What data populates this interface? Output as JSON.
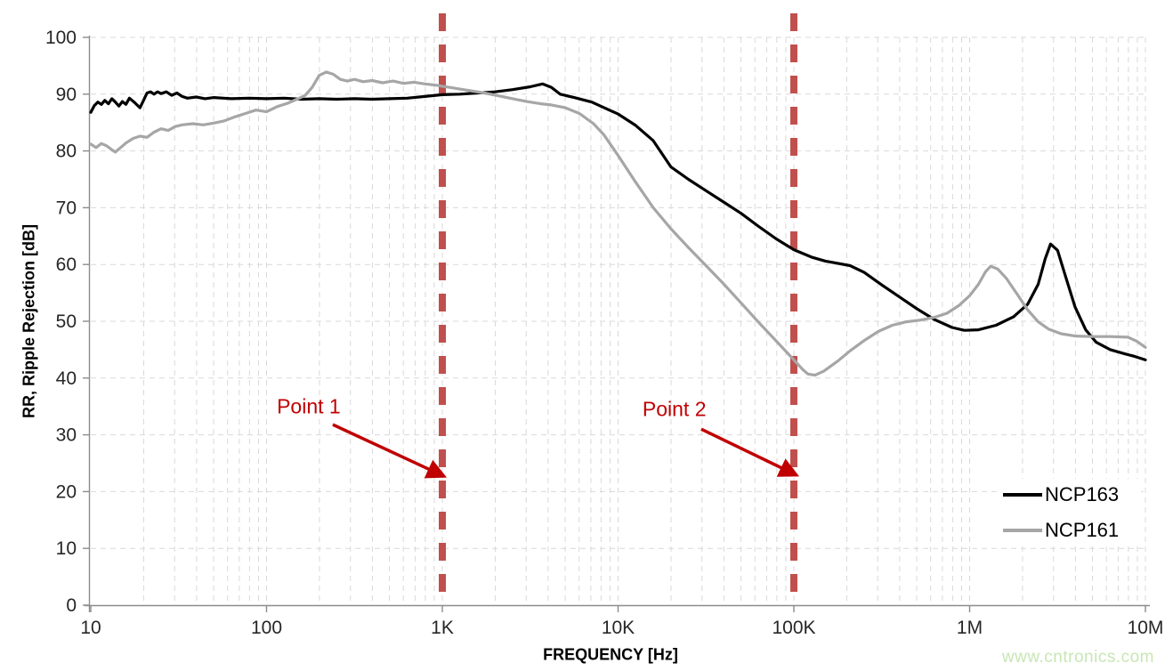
{
  "chart_data": {
    "type": "line",
    "title": "",
    "xlabel": "FREQUENCY [Hz]",
    "ylabel": "RR, Ripple Rejection [dB]",
    "x_scale": "log",
    "x_range_hz": [
      10,
      10000000
    ],
    "x_ticks": [
      {
        "label": "10",
        "log": 1
      },
      {
        "label": "100",
        "log": 2
      },
      {
        "label": "1K",
        "log": 3
      },
      {
        "label": "10K",
        "log": 4
      },
      {
        "label": "100K",
        "log": 5
      },
      {
        "label": "1M",
        "log": 6
      },
      {
        "label": "10M",
        "log": 7
      }
    ],
    "ylim": [
      0,
      100
    ],
    "y_ticks": [
      0,
      10,
      20,
      30,
      40,
      50,
      60,
      70,
      80,
      90,
      100
    ],
    "grid": true,
    "grid_color": "#D9D9D9",
    "axis_color": "#8C8C8C",
    "tick_label_color": "#262626",
    "series": [
      {
        "name": "NCP163",
        "color": "#000000",
        "width": 3.2,
        "points": [
          [
            1.0,
            86.8
          ],
          [
            1.02,
            88.0
          ],
          [
            1.04,
            88.6
          ],
          [
            1.06,
            88.2
          ],
          [
            1.08,
            88.9
          ],
          [
            1.1,
            88.3
          ],
          [
            1.12,
            89.2
          ],
          [
            1.14,
            88.6
          ],
          [
            1.16,
            87.9
          ],
          [
            1.18,
            88.7
          ],
          [
            1.2,
            88.2
          ],
          [
            1.22,
            89.3
          ],
          [
            1.25,
            88.5
          ],
          [
            1.28,
            87.6
          ],
          [
            1.3,
            88.9
          ],
          [
            1.32,
            90.2
          ],
          [
            1.34,
            90.4
          ],
          [
            1.36,
            90.0
          ],
          [
            1.38,
            90.4
          ],
          [
            1.4,
            90.1
          ],
          [
            1.43,
            90.4
          ],
          [
            1.46,
            89.8
          ],
          [
            1.49,
            90.2
          ],
          [
            1.52,
            89.6
          ],
          [
            1.55,
            89.3
          ],
          [
            1.6,
            89.5
          ],
          [
            1.65,
            89.2
          ],
          [
            1.7,
            89.4
          ],
          [
            1.8,
            89.2
          ],
          [
            1.9,
            89.3
          ],
          [
            2.0,
            89.2
          ],
          [
            2.1,
            89.3
          ],
          [
            2.2,
            89.1
          ],
          [
            2.3,
            89.2
          ],
          [
            2.4,
            89.1
          ],
          [
            2.5,
            89.2
          ],
          [
            2.6,
            89.1
          ],
          [
            2.7,
            89.2
          ],
          [
            2.8,
            89.3
          ],
          [
            2.9,
            89.6
          ],
          [
            3.0,
            89.9
          ],
          [
            3.1,
            90.0
          ],
          [
            3.2,
            90.2
          ],
          [
            3.3,
            90.4
          ],
          [
            3.4,
            90.8
          ],
          [
            3.5,
            91.3
          ],
          [
            3.57,
            91.8
          ],
          [
            3.62,
            91.2
          ],
          [
            3.67,
            90.0
          ],
          [
            3.75,
            89.4
          ],
          [
            3.85,
            88.6
          ],
          [
            3.95,
            87.2
          ],
          [
            4.0,
            86.5
          ],
          [
            4.1,
            84.5
          ],
          [
            4.2,
            81.8
          ],
          [
            4.3,
            77.2
          ],
          [
            4.4,
            75.0
          ],
          [
            4.5,
            73.0
          ],
          [
            4.6,
            71.0
          ],
          [
            4.7,
            69.0
          ],
          [
            4.8,
            66.7
          ],
          [
            4.9,
            64.5
          ],
          [
            5.0,
            62.6
          ],
          [
            5.1,
            61.3
          ],
          [
            5.18,
            60.6
          ],
          [
            5.25,
            60.2
          ],
          [
            5.32,
            59.8
          ],
          [
            5.4,
            58.6
          ],
          [
            5.5,
            56.4
          ],
          [
            5.6,
            54.3
          ],
          [
            5.7,
            52.2
          ],
          [
            5.8,
            50.3
          ],
          [
            5.9,
            48.9
          ],
          [
            5.97,
            48.4
          ],
          [
            6.05,
            48.5
          ],
          [
            6.15,
            49.3
          ],
          [
            6.25,
            50.8
          ],
          [
            6.33,
            53.0
          ],
          [
            6.39,
            56.5
          ],
          [
            6.43,
            61.0
          ],
          [
            6.46,
            63.6
          ],
          [
            6.5,
            62.5
          ],
          [
            6.54,
            58.5
          ],
          [
            6.6,
            52.5
          ],
          [
            6.66,
            48.5
          ],
          [
            6.72,
            46.3
          ],
          [
            6.8,
            45.0
          ],
          [
            6.88,
            44.3
          ],
          [
            6.94,
            43.8
          ],
          [
            7.0,
            43.2
          ]
        ]
      },
      {
        "name": "NCP161",
        "color": "#A6A6A6",
        "width": 3.2,
        "points": [
          [
            1.0,
            81.2
          ],
          [
            1.03,
            80.6
          ],
          [
            1.06,
            81.3
          ],
          [
            1.09,
            80.9
          ],
          [
            1.12,
            80.2
          ],
          [
            1.14,
            79.8
          ],
          [
            1.17,
            80.6
          ],
          [
            1.2,
            81.4
          ],
          [
            1.24,
            82.2
          ],
          [
            1.28,
            82.6
          ],
          [
            1.32,
            82.4
          ],
          [
            1.36,
            83.3
          ],
          [
            1.4,
            83.9
          ],
          [
            1.44,
            83.6
          ],
          [
            1.48,
            84.3
          ],
          [
            1.52,
            84.6
          ],
          [
            1.58,
            84.8
          ],
          [
            1.64,
            84.6
          ],
          [
            1.7,
            84.9
          ],
          [
            1.76,
            85.3
          ],
          [
            1.82,
            86.0
          ],
          [
            1.88,
            86.6
          ],
          [
            1.94,
            87.2
          ],
          [
            2.0,
            86.9
          ],
          [
            2.06,
            87.8
          ],
          [
            2.12,
            88.4
          ],
          [
            2.18,
            89.2
          ],
          [
            2.22,
            89.8
          ],
          [
            2.26,
            91.2
          ],
          [
            2.3,
            93.3
          ],
          [
            2.34,
            93.9
          ],
          [
            2.38,
            93.5
          ],
          [
            2.42,
            92.6
          ],
          [
            2.46,
            92.3
          ],
          [
            2.5,
            92.6
          ],
          [
            2.55,
            92.2
          ],
          [
            2.6,
            92.4
          ],
          [
            2.66,
            92.0
          ],
          [
            2.72,
            92.3
          ],
          [
            2.78,
            91.9
          ],
          [
            2.84,
            92.1
          ],
          [
            2.9,
            91.8
          ],
          [
            2.96,
            91.6
          ],
          [
            3.0,
            91.4
          ],
          [
            3.08,
            91.0
          ],
          [
            3.16,
            90.6
          ],
          [
            3.24,
            90.2
          ],
          [
            3.32,
            89.7
          ],
          [
            3.4,
            89.2
          ],
          [
            3.48,
            88.7
          ],
          [
            3.56,
            88.3
          ],
          [
            3.62,
            88.1
          ],
          [
            3.7,
            87.6
          ],
          [
            3.78,
            86.6
          ],
          [
            3.86,
            84.8
          ],
          [
            3.92,
            82.8
          ],
          [
            4.0,
            79.2
          ],
          [
            4.1,
            74.5
          ],
          [
            4.2,
            70.0
          ],
          [
            4.3,
            66.3
          ],
          [
            4.4,
            63.0
          ],
          [
            4.5,
            59.8
          ],
          [
            4.6,
            56.6
          ],
          [
            4.7,
            53.2
          ],
          [
            4.8,
            49.8
          ],
          [
            4.9,
            46.5
          ],
          [
            5.0,
            43.2
          ],
          [
            5.05,
            41.5
          ],
          [
            5.08,
            40.7
          ],
          [
            5.12,
            40.5
          ],
          [
            5.17,
            41.2
          ],
          [
            5.25,
            43.0
          ],
          [
            5.32,
            44.8
          ],
          [
            5.4,
            46.6
          ],
          [
            5.48,
            48.2
          ],
          [
            5.56,
            49.3
          ],
          [
            5.64,
            49.9
          ],
          [
            5.72,
            50.2
          ],
          [
            5.8,
            50.7
          ],
          [
            5.87,
            51.4
          ],
          [
            5.94,
            52.8
          ],
          [
            6.0,
            54.5
          ],
          [
            6.05,
            56.5
          ],
          [
            6.09,
            58.7
          ],
          [
            6.12,
            59.7
          ],
          [
            6.16,
            59.2
          ],
          [
            6.21,
            57.5
          ],
          [
            6.27,
            54.8
          ],
          [
            6.33,
            52.0
          ],
          [
            6.39,
            49.9
          ],
          [
            6.45,
            48.6
          ],
          [
            6.52,
            47.8
          ],
          [
            6.6,
            47.4
          ],
          [
            6.7,
            47.3
          ],
          [
            6.8,
            47.3
          ],
          [
            6.9,
            47.2
          ],
          [
            6.95,
            46.5
          ],
          [
            7.0,
            45.4
          ]
        ]
      }
    ],
    "annotations": {
      "color": "#C00000",
      "vline_color": "#C0504D",
      "vlines": [
        {
          "name": "point1-line",
          "log": 3,
          "freq_label": "1K"
        },
        {
          "name": "point2-line",
          "log": 5,
          "freq_label": "100K"
        }
      ],
      "labels": [
        {
          "text": "Point 1",
          "at": [
            2.24,
            35.0
          ]
        },
        {
          "text": "Point 2",
          "at": [
            4.32,
            34.5
          ]
        }
      ],
      "arrows": [
        {
          "from": [
            2.377,
            31.8
          ],
          "to": [
            3.01,
            22.7
          ]
        },
        {
          "from": [
            4.473,
            31.0
          ],
          "to": [
            5.015,
            22.9
          ]
        }
      ]
    },
    "legend": {
      "position": "bottom-right",
      "entries": [
        {
          "label": "NCP163",
          "color": "#000000"
        },
        {
          "label": "NCP161",
          "color": "#A6A6A6"
        }
      ]
    }
  },
  "watermark": {
    "text": "www.cntronics.com",
    "color": "#C8E6B4"
  }
}
